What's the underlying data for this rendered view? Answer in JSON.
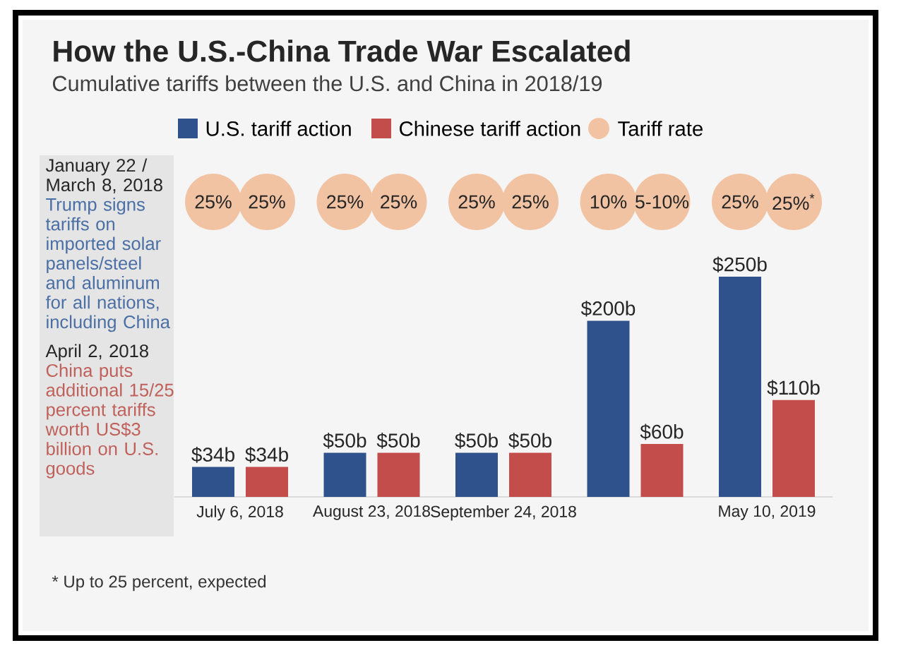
{
  "chart_data": {
    "type": "bar",
    "title": "How the U.S.-China Trade War Escalated",
    "subtitle": "Cumulative tariffs between the U.S. and China in 2018/19",
    "categories": [
      "July 6, 2018",
      "August 23, 2018",
      "September 24, 2018",
      null,
      "May 10, 2019"
    ],
    "series": [
      {
        "name": "U.S. tariff action",
        "color": "#30528c",
        "values": [
          34,
          50,
          50,
          200,
          250
        ],
        "value_labels": [
          "$34b",
          "$50b",
          "$50b",
          "$200b",
          "$250b"
        ]
      },
      {
        "name": "Chinese tariff action",
        "color": "#c24d4a",
        "values": [
          34,
          50,
          50,
          60,
          110
        ],
        "value_labels": [
          "$34b",
          "$50b",
          "$50b",
          "$60b",
          "$110b"
        ]
      }
    ],
    "legend": "top",
    "annotations": [
      "25%",
      "25%",
      "25%",
      "25%",
      "25%",
      "25%",
      "10%",
      "5-10%",
      "25%",
      "25%$^{*}$",
      "Tariff rate",
      "January 22 / March 8, 2018",
      "Trump signs tariffs on imported solar panels/steel and aluminum for all nations, including China",
      "April 2, 2018",
      "China puts additional 15/25 percent tariffs worth US$3 billion on U.S. goods",
      "* Up to 25 percent, expected"
    ]
  }
}
